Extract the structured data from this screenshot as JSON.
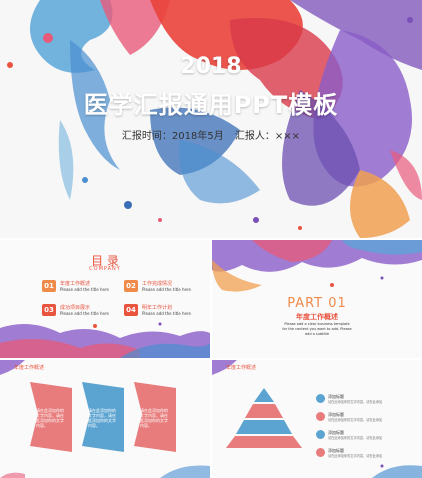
{
  "main_slide": {
    "year": "2018",
    "title": "医学汇报通用PPT模板",
    "report_time_label": "汇报时间：2018年5月",
    "reporter_label": "汇报人：×××"
  },
  "toc_slide": {
    "title": "目 录",
    "subtitle": "COMPANY",
    "items": [
      {
        "num": "01",
        "label": "年度工作概述",
        "desc": "Please add the title here",
        "color": "#f08a4b"
      },
      {
        "num": "02",
        "label": "工作完成情况",
        "desc": "Please add the title here",
        "color": "#f08a4b"
      },
      {
        "num": "03",
        "label": "成功项目展示",
        "desc": "Please add the title here",
        "color": "#e9543f"
      },
      {
        "num": "04",
        "label": "明年工作计划",
        "desc": "Please add the title here",
        "color": "#e9543f"
      }
    ]
  },
  "part_slide": {
    "part": "PART 01",
    "title": "年度工作概述",
    "desc": "Please add a clear business template for the content you want to add. Please add a subtitle"
  },
  "chevron_slide": {
    "heading": "年度工作概述",
    "chevrons": [
      {
        "text": "请在此添加你的文字内容，请在此添加你的文字内容。",
        "color": "#e87b7b"
      },
      {
        "text": "请在此添加你的文字内容，请在此添加你的文字内容。",
        "color": "#5ba3d0"
      },
      {
        "text": "请在此添加你的文字内容，请在此添加你的文字内容。",
        "color": "#e87b7b"
      }
    ]
  },
  "pyramid_slide": {
    "heading": "年度工作概述",
    "items": [
      {
        "label": "添加标题",
        "desc": "请在此添加你的文字内容，请在此添加",
        "color": "#5ba3d0"
      },
      {
        "label": "添加标题",
        "desc": "请在此添加你的文字内容，请在此添加",
        "color": "#e87b7b"
      },
      {
        "label": "添加标题",
        "desc": "请在此添加你的文字内容，请在此添加",
        "color": "#5ba3d0"
      },
      {
        "label": "添加标题",
        "desc": "请在此添加你的文字内容，请在此添加",
        "color": "#e87b7b"
      }
    ]
  },
  "colors": {
    "accent_red": "#e9543f",
    "accent_orange": "#f08a4b",
    "splash_blue": "#4a8fd0",
    "splash_purple": "#7a4fb8",
    "splash_pink": "#e85a7a"
  }
}
